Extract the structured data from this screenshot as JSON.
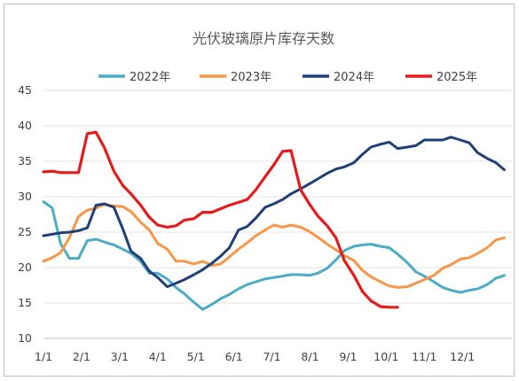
{
  "chart_data": {
    "type": "line",
    "title": "光伏玻璃原片库存天数",
    "xlabel": "",
    "ylabel": "",
    "ylim": [
      10,
      45
    ],
    "yticks": [
      10,
      15,
      20,
      25,
      30,
      35,
      40,
      45
    ],
    "xtick_labels": [
      "1/1",
      "2/1",
      "3/1",
      "4/1",
      "5/1",
      "6/1",
      "7/1",
      "8/1",
      "9/1",
      "10/1",
      "11/1",
      "12/1"
    ],
    "x_unit": "month index (0 = 1/1, 11 = 12/1)",
    "xlim": [
      0,
      12.3
    ],
    "grid": "horizontal",
    "legend_position": "top",
    "series": [
      {
        "name": "2022年",
        "color": "#4bacc6",
        "x": [
          0,
          0.23,
          0.45,
          0.68,
          0.92,
          1.15,
          1.38,
          1.6,
          1.85,
          2.08,
          2.3,
          2.55,
          2.78,
          3.0,
          3.25,
          3.48,
          3.7,
          3.95,
          4.18,
          4.42,
          4.65,
          4.88,
          5.12,
          5.35,
          5.58,
          5.82,
          6.05,
          6.28,
          6.5,
          6.75,
          6.98,
          7.2,
          7.45,
          7.68,
          7.9,
          8.15,
          8.38,
          8.6,
          8.85,
          9.08,
          9.3,
          9.55,
          9.78,
          10.0,
          10.25,
          10.48,
          10.7,
          10.95,
          11.18,
          11.4,
          11.65,
          11.88,
          12.1
        ],
        "values": [
          29.3,
          28.4,
          23.4,
          21.3,
          21.3,
          23.8,
          24.0,
          23.6,
          23.2,
          22.6,
          22.0,
          20.9,
          19.2,
          19.2,
          18.4,
          17.2,
          16.3,
          15.1,
          14.1,
          14.8,
          15.6,
          16.2,
          17.0,
          17.6,
          18.0,
          18.4,
          18.6,
          18.8,
          19.0,
          19.0,
          18.9,
          19.2,
          19.9,
          21.1,
          22.4,
          23.0,
          23.2,
          23.3,
          23.0,
          22.8,
          21.9,
          20.7,
          19.4,
          18.8,
          18.0,
          17.2,
          16.8,
          16.5,
          16.8,
          17.0,
          17.6,
          18.5,
          18.9
        ]
      },
      {
        "name": "2023年",
        "color": "#f79646",
        "x": [
          0,
          0.23,
          0.45,
          0.68,
          0.92,
          1.15,
          1.38,
          1.6,
          1.85,
          2.08,
          2.3,
          2.55,
          2.78,
          3.0,
          3.25,
          3.48,
          3.7,
          3.95,
          4.18,
          4.42,
          4.65,
          4.88,
          5.12,
          5.35,
          5.58,
          5.82,
          6.05,
          6.28,
          6.5,
          6.75,
          6.98,
          7.2,
          7.45,
          7.68,
          7.9,
          8.15,
          8.38,
          8.6,
          8.85,
          9.08,
          9.3,
          9.55,
          9.78,
          10.0,
          10.25,
          10.48,
          10.7,
          10.95,
          11.18,
          11.4,
          11.65,
          11.88,
          12.1
        ],
        "values": [
          20.9,
          21.4,
          22.1,
          24.2,
          27.2,
          28.1,
          28.4,
          28.9,
          28.7,
          28.6,
          27.9,
          26.4,
          25.3,
          23.4,
          22.6,
          20.9,
          20.9,
          20.5,
          20.9,
          20.3,
          20.5,
          21.5,
          22.6,
          23.5,
          24.5,
          25.3,
          26.0,
          25.7,
          26.0,
          25.7,
          25.1,
          24.3,
          23.3,
          22.5,
          21.7,
          21.0,
          19.6,
          18.7,
          18.0,
          17.4,
          17.2,
          17.3,
          17.8,
          18.3,
          18.9,
          19.9,
          20.4,
          21.2,
          21.4,
          22.0,
          22.8,
          23.9,
          24.2
        ]
      },
      {
        "name": "2024年",
        "color": "#1f3f78",
        "x": [
          0,
          0.23,
          0.45,
          0.68,
          0.92,
          1.15,
          1.38,
          1.6,
          1.85,
          2.08,
          2.3,
          2.55,
          2.78,
          3.0,
          3.25,
          3.48,
          3.7,
          3.95,
          4.18,
          4.42,
          4.65,
          4.88,
          5.12,
          5.35,
          5.58,
          5.82,
          6.05,
          6.28,
          6.5,
          6.75,
          6.98,
          7.2,
          7.45,
          7.68,
          7.9,
          8.15,
          8.38,
          8.6,
          8.85,
          9.08,
          9.3,
          9.55,
          9.78,
          10.0,
          10.25,
          10.48,
          10.7,
          10.95,
          11.18,
          11.4,
          11.65,
          11.88,
          12.1
        ],
        "values": [
          24.5,
          24.7,
          24.9,
          25.0,
          25.2,
          25.6,
          28.8,
          29.0,
          28.5,
          25.5,
          22.3,
          21.3,
          19.5,
          18.6,
          17.3,
          17.8,
          18.3,
          19.0,
          19.7,
          20.6,
          21.6,
          22.8,
          25.3,
          25.8,
          27.0,
          28.5,
          29.0,
          29.6,
          30.4,
          31.1,
          31.8,
          32.5,
          33.3,
          33.9,
          34.2,
          34.8,
          36.0,
          37.0,
          37.4,
          37.7,
          36.8,
          37.0,
          37.2,
          38.0,
          38.0,
          38.0,
          38.4,
          38.0,
          37.6,
          36.2,
          35.4,
          34.8,
          33.8
        ]
      },
      {
        "name": "2025年",
        "color": "#e31b1b",
        "x": [
          0,
          0.23,
          0.45,
          0.68,
          0.92,
          1.15,
          1.38,
          1.6,
          1.85,
          2.08,
          2.3,
          2.55,
          2.78,
          3.0,
          3.25,
          3.48,
          3.7,
          3.95,
          4.18,
          4.42,
          4.65,
          4.88,
          5.12,
          5.35,
          5.58,
          5.82,
          6.05,
          6.28,
          6.5,
          6.75,
          6.98,
          7.2,
          7.45,
          7.68,
          7.9,
          8.15,
          8.38,
          8.6,
          8.85,
          9.08,
          9.3
        ],
        "values": [
          33.5,
          33.6,
          33.4,
          33.4,
          33.4,
          38.9,
          39.1,
          36.9,
          33.6,
          31.6,
          30.4,
          28.8,
          27.1,
          26.0,
          25.7,
          25.9,
          26.7,
          26.9,
          27.8,
          27.8,
          28.3,
          28.8,
          29.2,
          29.6,
          31.0,
          32.8,
          34.5,
          36.4,
          36.5,
          31.0,
          29.0,
          27.3,
          25.9,
          24.2,
          21.0,
          18.9,
          16.6,
          15.3,
          14.5,
          14.4,
          14.4
        ]
      }
    ]
  }
}
